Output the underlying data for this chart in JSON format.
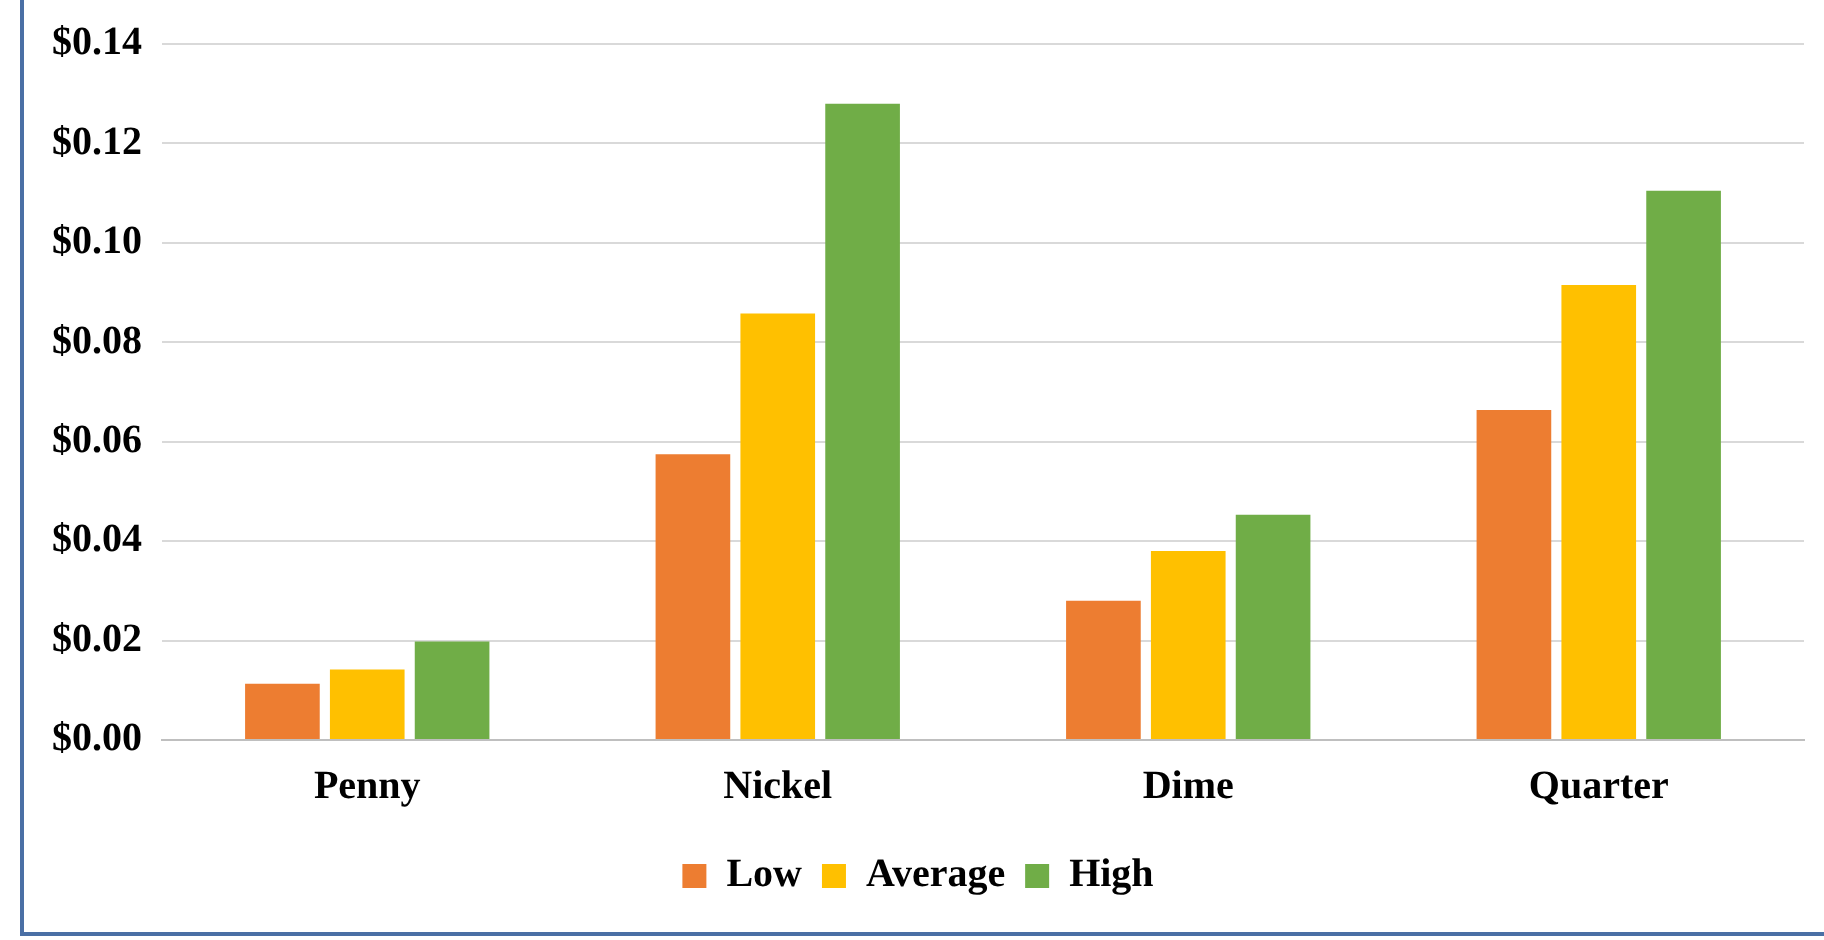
{
  "chart_data": {
    "type": "bar",
    "categories": [
      "Penny",
      "Nickel",
      "Dime",
      "Quarter"
    ],
    "series": [
      {
        "name": "Low",
        "color": "#ed7d31",
        "values": [
          0.0113,
          0.0575,
          0.028,
          0.0664
        ]
      },
      {
        "name": "Average",
        "color": "#ffc000",
        "values": [
          0.0142,
          0.0858,
          0.038,
          0.0915
        ]
      },
      {
        "name": "High",
        "color": "#70ad47",
        "values": [
          0.0198,
          0.128,
          0.0453,
          0.1105
        ]
      }
    ],
    "ylim": [
      0,
      0.14
    ],
    "yticks": [
      {
        "value": 0,
        "label": "$0.00"
      },
      {
        "value": 0.02,
        "label": "$0.02"
      },
      {
        "value": 0.04,
        "label": "$0.04"
      },
      {
        "value": 0.06,
        "label": "$0.06"
      },
      {
        "value": 0.08,
        "label": "$0.08"
      },
      {
        "value": 0.1,
        "label": "$0.10"
      },
      {
        "value": 0.12,
        "label": "$0.12"
      },
      {
        "value": 0.14,
        "label": "$0.14"
      }
    ],
    "grid": "y",
    "legend": "bottom"
  }
}
